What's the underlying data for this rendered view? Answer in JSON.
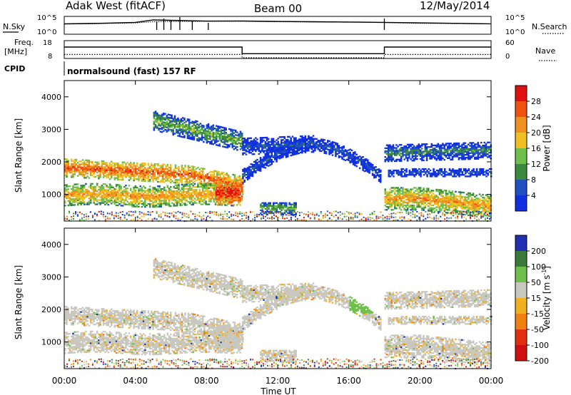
{
  "header": {
    "station": "Adak West (fitACF)",
    "beam": "Beam 00",
    "date": "12/May/2014"
  },
  "panels": {
    "nsky_label": "N.Sky",
    "nsearch_label": "N.Search",
    "freq_label": "Freq.",
    "freq_unit": "[MHz]",
    "nave_label": "Nave",
    "cpid_label": "CPID",
    "cpid_text": "normalsound (fast) 157 RF",
    "noise_ticks_left": [
      "10^5",
      "10^0"
    ],
    "noise_ticks_right": [
      "10^5",
      "10^0"
    ],
    "freq_ticks": [
      "18",
      "8"
    ],
    "nave_ticks": [
      "60",
      "0"
    ]
  },
  "colors": {
    "power": [
      "#1030e0",
      "#2050c0",
      "#3c8a3c",
      "#6fc04a",
      "#f0c020",
      "#f09020",
      "#f05010",
      "#e01010"
    ],
    "velocity": [
      "#2030b0",
      "#3a7a3a",
      "#6fc04a",
      "#c8c8c0",
      "#f0b020",
      "#f08010",
      "#e03010",
      "#d01010"
    ]
  },
  "chart_data": [
    {
      "type": "line",
      "name": "noise",
      "ylabel": "N.Sky / N.Search",
      "y_scale": "log",
      "ylim": [
        1,
        100000
      ],
      "x": [
        0,
        2,
        4,
        5,
        6,
        8,
        10,
        12,
        14,
        16,
        18,
        20,
        22,
        24
      ],
      "series": [
        {
          "name": "N.Sky",
          "values": [
            1000,
            1500,
            3000,
            20000,
            15000,
            8000,
            9000,
            6000,
            5000,
            4000,
            3000,
            2000,
            1500,
            1000
          ]
        },
        {
          "name": "N.Search",
          "values": [
            800,
            1200,
            2000,
            5000,
            6000,
            7000,
            7000,
            5000,
            4000,
            3500,
            2500,
            1500,
            1200,
            900
          ]
        }
      ]
    },
    {
      "type": "line",
      "name": "frequency-nave",
      "x": [
        0,
        10,
        10,
        18,
        18,
        24
      ],
      "series": [
        {
          "name": "Freq.",
          "values": [
            14.5,
            14.5,
            10.5,
            10.5,
            14.5,
            14.5
          ],
          "ylim": [
            8,
            18
          ]
        },
        {
          "name": "Nave",
          "values": [
            12,
            12,
            0,
            0,
            12,
            12
          ],
          "ylim": [
            0,
            60
          ]
        }
      ]
    },
    {
      "type": "heatmap",
      "name": "power",
      "xlabel": "",
      "ylabel": "Slant Range [km]",
      "xlim": [
        0,
        24
      ],
      "ylim": [
        180,
        4500
      ],
      "yticks": [
        1000,
        2000,
        3000,
        4000
      ],
      "colorbar_label": "Power [dB]",
      "colorbar_ticks": [
        4,
        8,
        12,
        16,
        20,
        24,
        28
      ],
      "clim": [
        0,
        30
      ]
    },
    {
      "type": "heatmap",
      "name": "velocity",
      "xlabel": "Time UT",
      "ylabel": "Slant Range [km]",
      "xlim": [
        0,
        24
      ],
      "ylim": [
        180,
        4500
      ],
      "xticks": [
        "00:00",
        "04:00",
        "08:00",
        "12:00",
        "16:00",
        "20:00",
        "00:00"
      ],
      "yticks": [
        1000,
        2000,
        3000,
        4000
      ],
      "colorbar_label": "Velocity [m s^-1]",
      "colorbar_ticks": [
        "200",
        "100",
        "50",
        "15",
        "-15",
        "-50",
        "-100",
        "-200"
      ],
      "clim": [
        -250,
        250
      ]
    }
  ],
  "axes": {
    "slant_range_label": "Slant Range [km]",
    "power_label": "Power [dB]",
    "velocity_label": "Velocity [m s",
    "velocity_exp": "-1",
    "velocity_close": "]",
    "time_label": "Time UT",
    "range_ticks": [
      "1000",
      "2000",
      "3000",
      "4000"
    ],
    "time_ticks": [
      "00:00",
      "04:00",
      "08:00",
      "12:00",
      "16:00",
      "20:00",
      "00:00"
    ],
    "power_ticks": [
      "4",
      "8",
      "12",
      "16",
      "20",
      "24",
      "28"
    ],
    "velocity_ticks": [
      "200",
      "100",
      "50",
      "15",
      "-15",
      "-50",
      "-100",
      "-200"
    ]
  }
}
